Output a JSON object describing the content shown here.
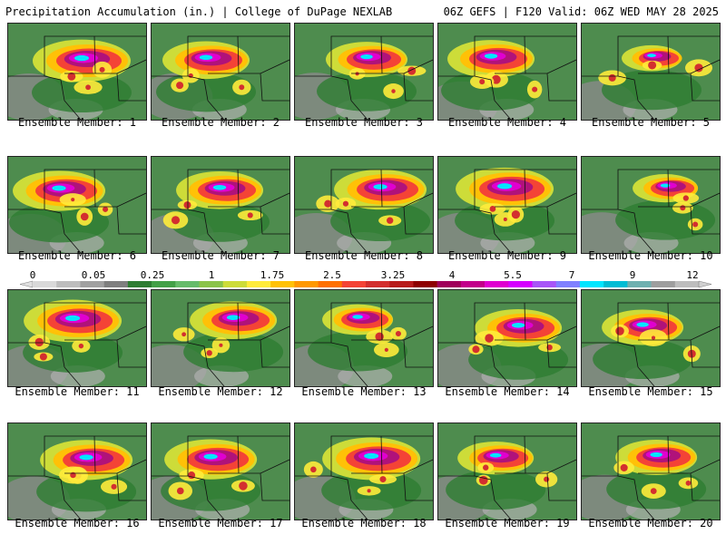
{
  "header": {
    "left_title": "Precipitation Accumulation (in.) | College of DuPage NEXLAB",
    "right_title": "06Z GEFS | F120 Valid: 06Z WED MAY 28 2025"
  },
  "members": [
    {
      "label": "Ensemble Member: 1",
      "intensity": 0.9
    },
    {
      "label": "Ensemble Member: 2",
      "intensity": 0.8
    },
    {
      "label": "Ensemble Member: 3",
      "intensity": 0.75
    },
    {
      "label": "Ensemble Member: 4",
      "intensity": 0.8
    },
    {
      "label": "Ensemble Member: 5",
      "intensity": 0.55
    },
    {
      "label": "Ensemble Member: 6",
      "intensity": 0.85
    },
    {
      "label": "Ensemble Member: 7",
      "intensity": 0.8
    },
    {
      "label": "Ensemble Member: 8",
      "intensity": 0.85
    },
    {
      "label": "Ensemble Member: 9",
      "intensity": 0.9
    },
    {
      "label": "Ensemble Member: 10",
      "intensity": 0.6
    },
    {
      "label": "Ensemble Member: 11",
      "intensity": 0.9
    },
    {
      "label": "Ensemble Member: 12",
      "intensity": 0.8
    },
    {
      "label": "Ensemble Member: 13",
      "intensity": 0.65
    },
    {
      "label": "Ensemble Member: 14",
      "intensity": 0.8
    },
    {
      "label": "Ensemble Member: 15",
      "intensity": 0.75
    },
    {
      "label": "Ensemble Member: 16",
      "intensity": 0.85
    },
    {
      "label": "Ensemble Member: 17",
      "intensity": 0.85
    },
    {
      "label": "Ensemble Member: 18",
      "intensity": 0.9
    },
    {
      "label": "Ensemble Member: 19",
      "intensity": 0.7
    },
    {
      "label": "Ensemble Member: 20",
      "intensity": 0.75
    }
  ],
  "colorbar": {
    "labels": [
      "0",
      "0.05",
      "0.25",
      "1",
      "1.75",
      "2.5",
      "3.25",
      "4",
      "5.5",
      "7",
      "9",
      "12"
    ],
    "colors": [
      "#d9d9d9",
      "#bdbdbd",
      "#a0a0a0",
      "#7f7f7f",
      "#2e7d32",
      "#43a047",
      "#66bb6a",
      "#8bc34a",
      "#cddc39",
      "#ffeb3b",
      "#ffc107",
      "#ff9800",
      "#ff7000",
      "#f44336",
      "#d32f2f",
      "#b71c1c",
      "#8e0000",
      "#a0005a",
      "#c2008a",
      "#e000d0",
      "#d600ff",
      "#a855f7",
      "#8080ff",
      "#00e5ff",
      "#00bcd4",
      "#6fb0b0",
      "#9e9e9e",
      "#bdbdbd"
    ]
  }
}
